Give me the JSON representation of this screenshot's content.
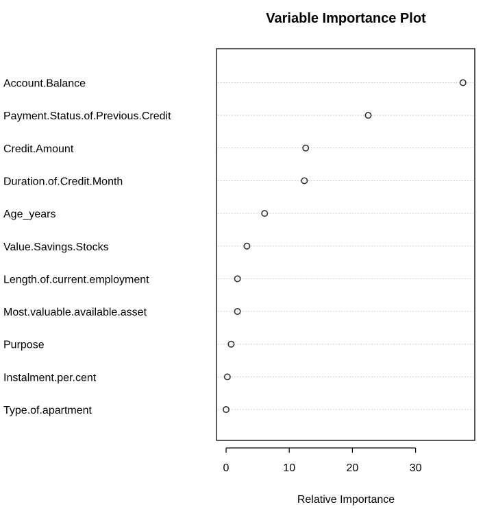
{
  "chart_data": {
    "type": "scatter",
    "subtype": "dotchart",
    "title": "Variable Importance Plot",
    "xlabel": "Relative Importance",
    "ylabel": "",
    "xlim": [
      -1.5,
      39.5
    ],
    "xticks": [
      0,
      10,
      20,
      30
    ],
    "grid": "dotted horizontal",
    "categories": [
      "Account.Balance",
      "Payment.Status.of.Previous.Credit",
      "Credit.Amount",
      "Duration.of.Credit.Month",
      "Age_years",
      "Value.Savings.Stocks",
      "Length.of.current.employment",
      "Most.valuable.available.asset",
      "Purpose",
      "Instalment.per.cent",
      "Type.of.apartment"
    ],
    "values": [
      37.5,
      22.5,
      12.6,
      12.4,
      6.1,
      3.3,
      1.8,
      1.8,
      0.8,
      0.2,
      0.0
    ]
  },
  "colors": {
    "background": "#ffffff",
    "frame": "#000000",
    "grid": "#bfbfbf",
    "point": "#333333",
    "text": "#000000"
  }
}
